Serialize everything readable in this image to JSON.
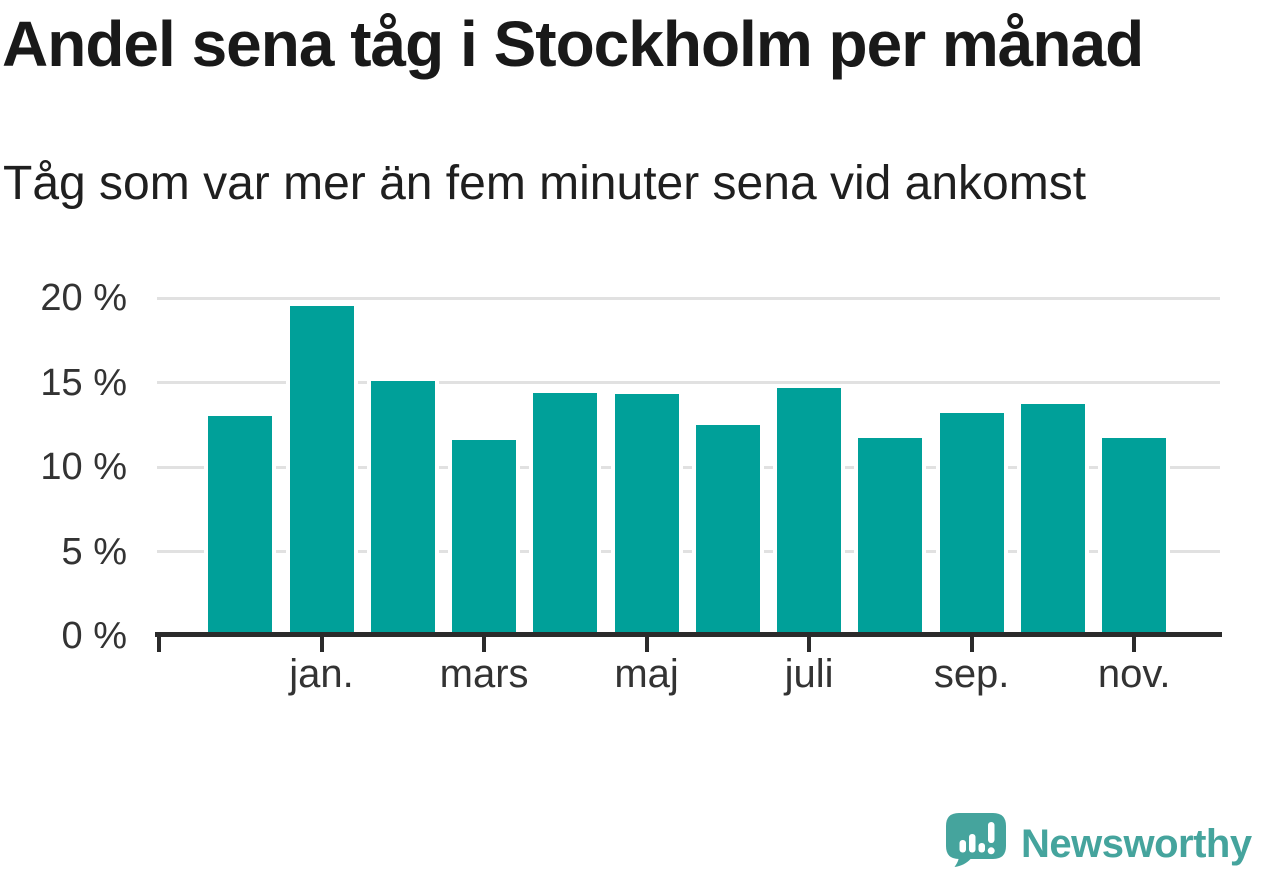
{
  "chart_data": {
    "type": "bar",
    "title": "Andel sena tåg i Stockholm per månad",
    "subtitle": "Tåg som var mer än fem minuter sena vid ankomst",
    "unit": "%",
    "n_bars": 12,
    "values": [
      13.0,
      19.5,
      15.1,
      11.6,
      14.4,
      14.3,
      12.5,
      14.7,
      11.7,
      13.2,
      13.7,
      11.7
    ],
    "ylim": [
      0,
      20
    ],
    "grid": "horizontal",
    "legend": "none",
    "yticks": [
      {
        "value": 0,
        "label": "0 %"
      },
      {
        "value": 5,
        "label": "5 %"
      },
      {
        "value": 10,
        "label": "10 %"
      },
      {
        "value": 15,
        "label": "15 %"
      },
      {
        "value": 20,
        "label": "20 %"
      }
    ],
    "xticks": [
      {
        "bar": 0,
        "label": ""
      },
      {
        "bar": 2,
        "label": "jan."
      },
      {
        "bar": 4,
        "label": "mars"
      },
      {
        "bar": 6,
        "label": "maj"
      },
      {
        "bar": 8,
        "label": "juli"
      },
      {
        "bar": 10,
        "label": "sep."
      },
      {
        "bar": 12,
        "label": "nov."
      }
    ]
  },
  "footer": {
    "brand": "Newsworthy"
  },
  "colors": {
    "accent": "#00a099",
    "brand": "#45a49d",
    "axis": "#2b2b2b",
    "grid": "#e1e1e1",
    "tick_text": "#333333",
    "title_text": "#191919"
  }
}
